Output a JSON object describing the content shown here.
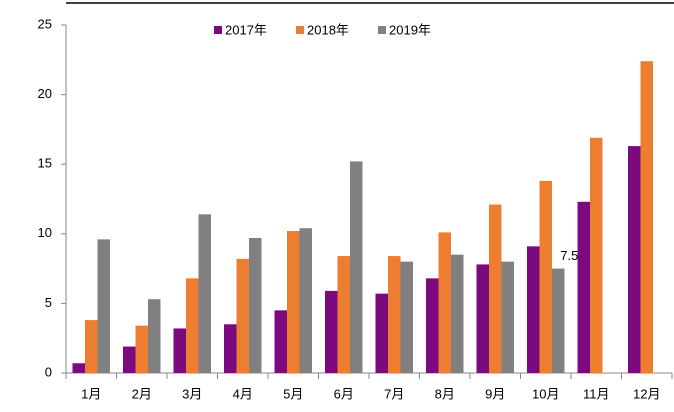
{
  "chart_data": {
    "type": "bar",
    "categories": [
      "1月",
      "2月",
      "3月",
      "4月",
      "5月",
      "6月",
      "7月",
      "8月",
      "9月",
      "10月",
      "11月",
      "12月"
    ],
    "series": [
      {
        "name": "2017年",
        "color": "#7b0a7e",
        "values": [
          0.7,
          1.9,
          3.2,
          3.5,
          4.5,
          5.9,
          5.7,
          6.8,
          7.8,
          9.1,
          12.3,
          16.3
        ]
      },
      {
        "name": "2018年",
        "color": "#ed7d31",
        "values": [
          3.8,
          3.4,
          6.8,
          8.2,
          10.2,
          8.4,
          8.4,
          10.1,
          12.1,
          13.8,
          16.9,
          22.4
        ]
      },
      {
        "name": "2019年",
        "color": "#808080",
        "values": [
          9.6,
          5.3,
          11.4,
          9.7,
          10.4,
          15.2,
          8.0,
          8.5,
          8.0,
          7.5,
          null,
          null
        ],
        "value_labels": [
          null,
          null,
          null,
          null,
          null,
          null,
          null,
          null,
          null,
          "7.5",
          null,
          null
        ]
      }
    ],
    "ylim": [
      0,
      25
    ],
    "yticks": [
      0,
      5,
      10,
      15,
      20,
      25
    ],
    "grid": false,
    "legend": "top"
  }
}
